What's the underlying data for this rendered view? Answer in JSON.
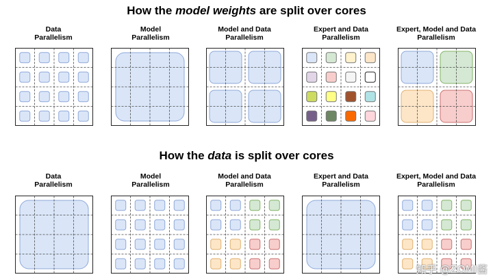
{
  "sections": [
    {
      "prefix": "How the ",
      "emph": "model weights",
      "suffix": " are split over cores"
    },
    {
      "prefix": "How the ",
      "emph": "data",
      "suffix": " is split over cores"
    }
  ],
  "panel_labels": [
    "Data\nParallelism",
    "Model\nParallelism",
    "Model and Data\nParallelism",
    "Expert and Data\nParallelism",
    "Expert, Model and Data\nParallelism"
  ],
  "colors": {
    "blue": "#dae6f8",
    "blue_stroke": "#8fa8d8",
    "green": "#d5e8d4",
    "green_stroke": "#82b366",
    "peach": "#fde6c8",
    "peach_stroke": "#e0b070",
    "pink": "#f8cecc",
    "pink_stroke": "#c87070",
    "expert_fills": [
      "#dae6f8",
      "#d5e8d4",
      "#fff2cc",
      "#fde6c8",
      "#e1d5e7",
      "#f8cecc",
      "#f5f5f5",
      "#ffffff",
      "#cddc60",
      "#ffff88",
      "#a0522d",
      "#b0e3e6",
      "#76608a",
      "#6d8764",
      "#fa6800",
      "#ffd6dc"
    ]
  },
  "watermark": "知乎 @ZOMI酱"
}
